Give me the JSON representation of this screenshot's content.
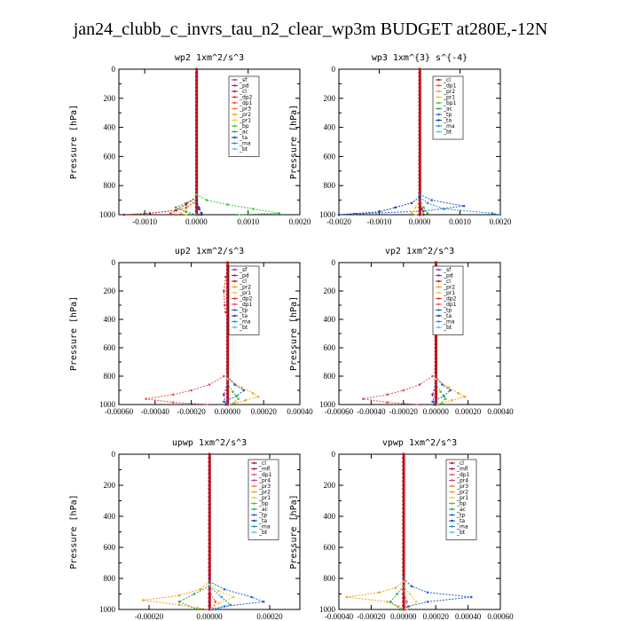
{
  "page_title": "jan24_clubb_c_invrs_tau_n2_clear_wp3m  BUDGET at280E,-12N",
  "colors": {
    "sf": "#8a3fb8",
    "pd": "#7a2a9a",
    "cl": "#c21010",
    "dp2": "#e03030",
    "dp1": "#e85050",
    "pr3": "#f08030",
    "pr2": "#f5a020",
    "pr1": "#f5c83a",
    "bp": "#3cc83c",
    "ac": "#30a050",
    "tp": "#2060c0",
    "ta": "#1040a0",
    "ma": "#2090d0",
    "bt": "#40c8f0",
    "mfl": "#a01060",
    "pr4": "#d04080"
  },
  "chart_data": [
    {
      "type": "line",
      "title": "wp2  1xm^2/s^3",
      "ylabel": "Pressure [hPa]",
      "xlim": [
        -0.0015,
        0.002
      ],
      "ylim": [
        1000,
        0
      ],
      "xticks": [
        "-0.0010",
        "0.0000",
        "0.0010",
        "0.0020"
      ],
      "xtick_values": [
        -0.001,
        0.0,
        0.001,
        0.002
      ],
      "yticks": [
        "0",
        "200",
        "400",
        "600",
        "800",
        "1000"
      ],
      "legend": [
        "_sf",
        "_pd",
        "_cl",
        "_dp2",
        "_dp1",
        "_pr3",
        "_pr2",
        "_pr1",
        "_bp",
        "_ac",
        "_ta",
        "_ma",
        "_bt"
      ],
      "legend_keys": [
        "sf",
        "pd",
        "cl",
        "dp2",
        "dp1",
        "pr3",
        "pr2",
        "pr1",
        "bp",
        "ac",
        "ta",
        "ma",
        "bt"
      ],
      "series": [
        {
          "key": "bp",
          "p": [
            860,
            900,
            930,
            960,
            990,
            1000
          ],
          "v": [
            0,
            0.0002,
            0.0006,
            0.0011,
            0.0016,
            0.0008
          ]
        },
        {
          "key": "pr1",
          "p": [
            880,
            920,
            960,
            990,
            1000
          ],
          "v": [
            0,
            -5e-05,
            -0.0002,
            -0.0003,
            -0.0002
          ]
        },
        {
          "key": "ac",
          "p": [
            880,
            920,
            950,
            980,
            1000
          ],
          "v": [
            0,
            -0.0002,
            -0.0004,
            -0.0002,
            0
          ]
        },
        {
          "key": "dp1",
          "p": [
            900,
            950,
            990,
            1000
          ],
          "v": [
            0,
            -0.0002,
            -0.0005,
            -0.0004
          ]
        },
        {
          "key": "cl",
          "p": [
            880,
            930,
            970,
            990,
            1000
          ],
          "v": [
            0,
            -0.0002,
            -0.0004,
            -0.0009,
            -0.0014
          ]
        },
        {
          "key": "pd",
          "p": [
            900,
            950,
            990,
            1000
          ],
          "v": [
            0,
            5e-05,
            0.0001,
            5e-05
          ]
        },
        {
          "key": "ta",
          "p": [
            900,
            960,
            1000
          ],
          "v": [
            0,
            5e-05,
            0.0001
          ]
        }
      ]
    },
    {
      "type": "line",
      "title": "wp3  1xm^{3} s^{-4}",
      "ylabel": "Pressure [hPa]",
      "xlim": [
        -0.002,
        0.002
      ],
      "ylim": [
        1000,
        0
      ],
      "xticks": [
        "-0.0020",
        "-0.0010",
        "0.0000",
        "0.0010",
        "0.0020"
      ],
      "xtick_values": [
        -0.002,
        -0.001,
        0.0,
        0.001,
        0.002
      ],
      "yticks": [
        "0",
        "200",
        "400",
        "600",
        "800",
        "1000"
      ],
      "legend": [
        "_cl",
        "_dp1",
        "_pr2",
        "_pr1",
        "_bp1",
        "_ac",
        "_tp",
        "_ta",
        "_ma",
        "_bt"
      ],
      "legend_keys": [
        "cl",
        "dp1",
        "pr2",
        "pr1",
        "bp",
        "ac",
        "tp",
        "ta",
        "ma",
        "bt"
      ],
      "series": [
        {
          "key": "tp",
          "p": [
            860,
            900,
            940,
            975,
            995,
            1000
          ],
          "v": [
            0,
            0.0003,
            0.0011,
            0.0001,
            -0.0016,
            -0.002
          ]
        },
        {
          "key": "ma",
          "p": [
            880,
            920,
            960,
            990,
            1000
          ],
          "v": [
            0,
            0.0002,
            0.0006,
            0.0018,
            0.002
          ]
        },
        {
          "key": "ta",
          "p": [
            880,
            920,
            950,
            980,
            1000
          ],
          "v": [
            0,
            -0.0002,
            -0.0006,
            -0.001,
            -0.002
          ]
        },
        {
          "key": "bp",
          "p": [
            900,
            950,
            990,
            1000
          ],
          "v": [
            0,
            0.0001,
            0.0002,
            0.0001
          ]
        },
        {
          "key": "pr1",
          "p": [
            900,
            950,
            990,
            1000
          ],
          "v": [
            0,
            -0.0001,
            -0.0002,
            -0.0001
          ]
        },
        {
          "key": "cl",
          "p": [
            900,
            960,
            1000
          ],
          "v": [
            0,
            5e-05,
            0.0001
          ]
        }
      ]
    },
    {
      "type": "line",
      "title": "up2  1xm^2/s^3",
      "ylabel": "Pressure [hPa]",
      "xlim": [
        -0.0006,
        0.0004
      ],
      "ylim": [
        1000,
        0
      ],
      "xticks": [
        "-0.00060",
        "-0.00040",
        "-0.00020",
        "0.00000",
        "0.00020",
        "0.00040"
      ],
      "xtick_values": [
        -0.0006,
        -0.0004,
        -0.0002,
        0.0,
        0.0002,
        0.0004
      ],
      "yticks": [
        "0",
        "200",
        "400",
        "600",
        "800",
        "1000"
      ],
      "legend": [
        "_sf",
        "_pd",
        "_cl",
        "_pr2",
        "_pr1",
        "_dp2",
        "_dp1",
        "_tp",
        "_ta",
        "_ma",
        "_bt"
      ],
      "legend_keys": [
        "sf",
        "pd",
        "cl",
        "pr2",
        "pr1",
        "dp2",
        "dp1",
        "tp",
        "ta",
        "ma",
        "bt"
      ],
      "series": [
        {
          "key": "dp1",
          "p": [
            800,
            860,
            900,
            930,
            960,
            985,
            1000
          ],
          "v": [
            -2e-05,
            -0.0001,
            -0.0002,
            -0.0003,
            -0.00045,
            -0.0003,
            -0.0001
          ]
        },
        {
          "key": "pr2",
          "p": [
            820,
            880,
            920,
            945,
            970,
            990,
            1000
          ],
          "v": [
            0,
            8e-05,
            0.00014,
            0.00017,
            0.0001,
            4e-05,
            0
          ]
        },
        {
          "key": "tp",
          "p": [
            800,
            860,
            900,
            940,
            980,
            1000
          ],
          "v": [
            0,
            4e-05,
            9e-05,
            5e-05,
            -2e-05,
            0
          ]
        },
        {
          "key": "bp",
          "p": [
            850,
            910,
            960,
            1000
          ],
          "v": [
            0,
            3e-05,
            6e-05,
            2e-05
          ]
        },
        {
          "key": "pd",
          "p": [
            850,
            930,
            1000
          ],
          "v": [
            0,
            -2e-05,
            -1e-05
          ]
        },
        {
          "key": "dp2",
          "p": [
            100,
            200,
            300,
            350
          ],
          "v": [
            -1e-05,
            -2e-05,
            -1.5e-05,
            -1e-05
          ]
        }
      ]
    },
    {
      "type": "line",
      "title": "vp2  1xm^2/s^3",
      "ylabel": "Pressure [hPa]",
      "xlim": [
        -0.0006,
        0.0004
      ],
      "ylim": [
        1000,
        0
      ],
      "xticks": [
        "-0.00060",
        "-0.00040",
        "-0.00020",
        "0.00000",
        "0.00020",
        "0.00040"
      ],
      "xtick_values": [
        -0.0006,
        -0.0004,
        -0.0002,
        0.0,
        0.0002,
        0.0004
      ],
      "yticks": [
        "0",
        "200",
        "400",
        "600",
        "800",
        "1000"
      ],
      "legend": [
        "_sf",
        "_pd",
        "_cl",
        "_pr2",
        "_pr1",
        "_dp2",
        "_dp1",
        "_tp",
        "_ta",
        "_ma",
        "_bt"
      ],
      "legend_keys": [
        "sf",
        "pd",
        "cl",
        "pr2",
        "pr1",
        "dp2",
        "dp1",
        "tp",
        "ta",
        "ma",
        "bt"
      ],
      "series": [
        {
          "key": "dp1",
          "p": [
            800,
            860,
            900,
            930,
            960,
            985,
            1000
          ],
          "v": [
            -2e-05,
            -0.0001,
            -0.0002,
            -0.0003,
            -0.00045,
            -0.0003,
            -0.0001
          ]
        },
        {
          "key": "pr2",
          "p": [
            820,
            880,
            920,
            945,
            970,
            990,
            1000
          ],
          "v": [
            0,
            8e-05,
            0.00014,
            0.00018,
            0.0001,
            4e-05,
            0
          ]
        },
        {
          "key": "tp",
          "p": [
            800,
            860,
            900,
            940,
            980,
            1000
          ],
          "v": [
            0,
            4e-05,
            9e-05,
            5e-05,
            -2e-05,
            0
          ]
        },
        {
          "key": "bp",
          "p": [
            850,
            910,
            960,
            1000
          ],
          "v": [
            0,
            3e-05,
            6e-05,
            2e-05
          ]
        },
        {
          "key": "pd",
          "p": [
            850,
            930,
            1000
          ],
          "v": [
            0,
            -2e-05,
            -1e-05
          ]
        }
      ]
    },
    {
      "type": "line",
      "title": "upwp  1xm^2/s^3",
      "ylabel": "Pressure [hPa]",
      "xlim": [
        -0.0003,
        0.0003
      ],
      "ylim": [
        1000,
        0
      ],
      "xticks": [
        "-0.00020",
        "0.00000",
        "0.00020"
      ],
      "xtick_values": [
        -0.0002,
        0.0,
        0.0002
      ],
      "yticks": [
        "0",
        "200",
        "400",
        "600",
        "800",
        "1000"
      ],
      "legend": [
        "_cl",
        "_mfl",
        "_dp1",
        "_pr4",
        "_pr3",
        "_pr2",
        "_pr1",
        "_bp",
        "_ac",
        "_tp",
        "_ta",
        "_ma",
        "_bt"
      ],
      "legend_keys": [
        "cl",
        "mfl",
        "dp1",
        "pr4",
        "pr3",
        "pr2",
        "pr1",
        "bp",
        "ac",
        "tp",
        "ta",
        "ma",
        "bt"
      ],
      "series": [
        {
          "key": "pr2",
          "p": [
            820,
            870,
            910,
            940,
            970,
            990,
            1000
          ],
          "v": [
            0,
            -3e-05,
            -0.0001,
            -0.00022,
            -0.0001,
            -4e-05,
            0
          ]
        },
        {
          "key": "pr1",
          "p": [
            840,
            880,
            920,
            960,
            1000
          ],
          "v": [
            0,
            3e-05,
            8e-05,
            3e-05,
            0
          ]
        },
        {
          "key": "tp",
          "p": [
            820,
            870,
            920,
            950,
            980,
            1000
          ],
          "v": [
            0,
            5e-05,
            0.00014,
            0.00018,
            5e-05,
            0
          ]
        },
        {
          "key": "ac",
          "p": [
            850,
            900,
            950,
            1000
          ],
          "v": [
            0,
            -5e-05,
            -0.0001,
            -4e-05
          ]
        },
        {
          "key": "ma",
          "p": [
            850,
            920,
            970,
            1000
          ],
          "v": [
            0,
            4e-05,
            7e-05,
            2e-05
          ]
        },
        {
          "key": "dp1",
          "p": [
            880,
            950,
            1000
          ],
          "v": [
            0,
            2e-05,
            1e-05
          ]
        }
      ]
    },
    {
      "type": "line",
      "title": "vpwp  1xm^2/s^3",
      "ylabel": "Pressure [hPa]",
      "xlim": [
        -0.0004,
        0.0006
      ],
      "ylim": [
        1000,
        0
      ],
      "xticks": [
        "-0.00040",
        "-0.00020",
        "0.00000",
        "0.00020",
        "0.00040",
        "0.00060"
      ],
      "xtick_values": [
        -0.0004,
        -0.0002,
        0.0,
        0.0002,
        0.0004,
        0.0006
      ],
      "yticks": [
        "0",
        "200",
        "400",
        "600",
        "800",
        "1000"
      ],
      "legend": [
        "_cl",
        "_mfl",
        "_dp1",
        "_pr4",
        "_pr3",
        "_pr2",
        "_pr1",
        "_bp",
        "_ac",
        "_tp",
        "_ta",
        "_ma",
        "_bt"
      ],
      "legend_keys": [
        "cl",
        "mfl",
        "dp1",
        "pr4",
        "pr3",
        "pr2",
        "pr1",
        "bp",
        "ac",
        "tp",
        "ta",
        "ma",
        "bt"
      ],
      "series": [
        {
          "key": "pr2",
          "p": [
            820,
            860,
            890,
            920,
            950,
            980,
            1000
          ],
          "v": [
            0,
            -5e-05,
            -0.00015,
            -0.00035,
            -0.0001,
            -3e-05,
            0
          ]
        },
        {
          "key": "tp",
          "p": [
            800,
            850,
            890,
            920,
            950,
            980,
            1000
          ],
          "v": [
            0,
            5e-05,
            0.00015,
            0.00042,
            0.00015,
            3e-05,
            0
          ]
        },
        {
          "key": "pr1",
          "p": [
            850,
            900,
            950,
            1000
          ],
          "v": [
            0,
            4e-05,
            8e-05,
            2e-05
          ]
        },
        {
          "key": "ac",
          "p": [
            850,
            900,
            950,
            1000
          ],
          "v": [
            0,
            -4e-05,
            -8e-05,
            -2e-05
          ]
        },
        {
          "key": "dp1",
          "p": [
            880,
            950,
            1000
          ],
          "v": [
            0,
            2e-05,
            1e-05
          ]
        }
      ]
    }
  ]
}
